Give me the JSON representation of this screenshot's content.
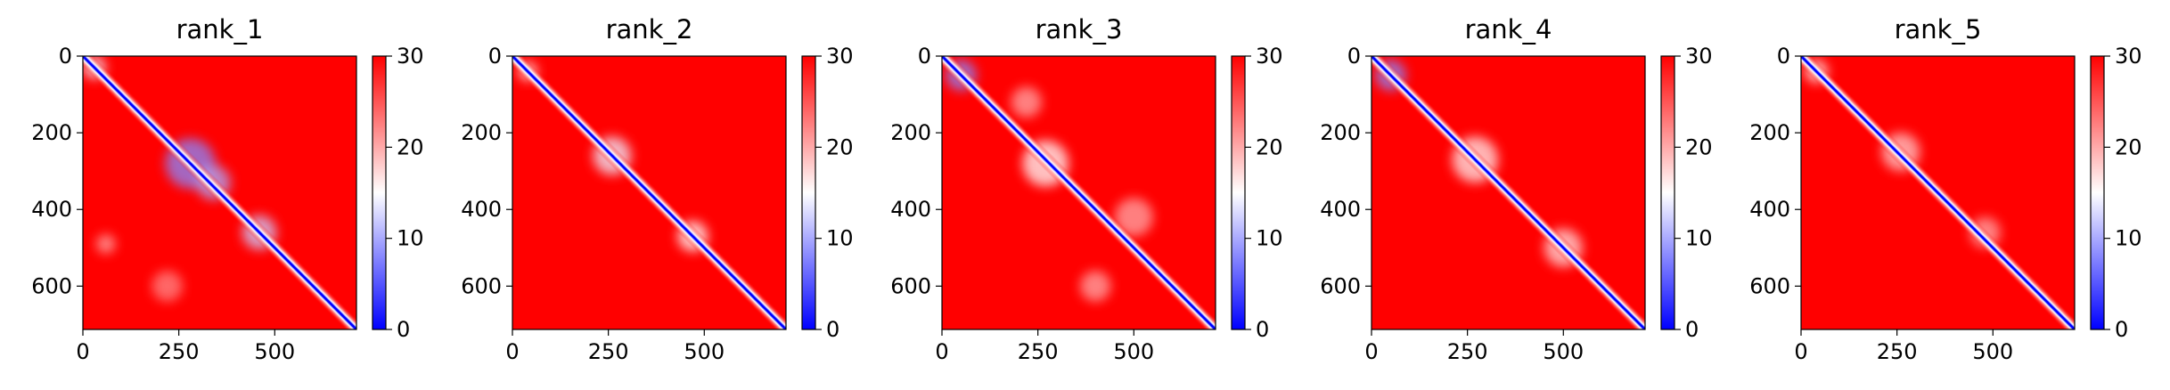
{
  "figure": {
    "colormap": [
      "#0000ff",
      "#ffffff",
      "#ff0000"
    ],
    "xlim": [
      0,
      713
    ],
    "ylim": [
      0,
      713
    ]
  },
  "chart_data": [
    {
      "type": "heatmap",
      "title": "rank_1",
      "x_ticks": [
        0,
        250,
        500
      ],
      "y_ticks": [
        0,
        200,
        400,
        600
      ],
      "colorbar": {
        "min": 0,
        "max": 30,
        "ticks": [
          0,
          10,
          20,
          30
        ]
      },
      "blobs": [
        {
          "x": 280,
          "y": 280,
          "r": 65,
          "v": 8
        },
        {
          "x": 340,
          "y": 330,
          "r": 45,
          "v": 10
        },
        {
          "x": 460,
          "y": 460,
          "r": 45,
          "v": 12
        },
        {
          "x": 30,
          "y": 30,
          "r": 30,
          "v": 14
        },
        {
          "x": 60,
          "y": 490,
          "r": 25,
          "v": 20
        },
        {
          "x": 220,
          "y": 600,
          "r": 40,
          "v": 22
        }
      ]
    },
    {
      "type": "heatmap",
      "title": "rank_2",
      "x_ticks": [
        0,
        250,
        500
      ],
      "y_ticks": [
        0,
        200,
        400,
        600
      ],
      "colorbar": {
        "min": 0,
        "max": 30,
        "ticks": [
          0,
          10,
          20,
          30
        ]
      },
      "blobs": [
        {
          "x": 260,
          "y": 260,
          "r": 50,
          "v": 14
        },
        {
          "x": 470,
          "y": 470,
          "r": 40,
          "v": 15
        },
        {
          "x": 40,
          "y": 40,
          "r": 25,
          "v": 16
        }
      ]
    },
    {
      "type": "heatmap",
      "title": "rank_3",
      "x_ticks": [
        0,
        250,
        500
      ],
      "y_ticks": [
        0,
        200,
        400,
        600
      ],
      "colorbar": {
        "min": 0,
        "max": 30,
        "ticks": [
          0,
          10,
          20,
          30
        ]
      },
      "blobs": [
        {
          "x": 50,
          "y": 50,
          "r": 40,
          "v": 8
        },
        {
          "x": 270,
          "y": 280,
          "r": 60,
          "v": 15
        },
        {
          "x": 220,
          "y": 120,
          "r": 40,
          "v": 20
        },
        {
          "x": 500,
          "y": 420,
          "r": 50,
          "v": 20
        },
        {
          "x": 400,
          "y": 600,
          "r": 40,
          "v": 20
        }
      ]
    },
    {
      "type": "heatmap",
      "title": "rank_4",
      "x_ticks": [
        0,
        250,
        500
      ],
      "y_ticks": [
        0,
        200,
        400,
        600
      ],
      "colorbar": {
        "min": 0,
        "max": 30,
        "ticks": [
          0,
          10,
          20,
          30
        ]
      },
      "blobs": [
        {
          "x": 50,
          "y": 50,
          "r": 40,
          "v": 8
        },
        {
          "x": 270,
          "y": 270,
          "r": 60,
          "v": 16
        },
        {
          "x": 500,
          "y": 500,
          "r": 50,
          "v": 17
        }
      ]
    },
    {
      "type": "heatmap",
      "title": "rank_5",
      "x_ticks": [
        0,
        250,
        500
      ],
      "y_ticks": [
        0,
        200,
        400,
        600
      ],
      "colorbar": {
        "min": 0,
        "max": 30,
        "ticks": [
          0,
          10,
          20,
          30
        ]
      },
      "blobs": [
        {
          "x": 40,
          "y": 40,
          "r": 30,
          "v": 16
        },
        {
          "x": 260,
          "y": 250,
          "r": 50,
          "v": 18
        },
        {
          "x": 480,
          "y": 460,
          "r": 40,
          "v": 20
        }
      ]
    }
  ]
}
